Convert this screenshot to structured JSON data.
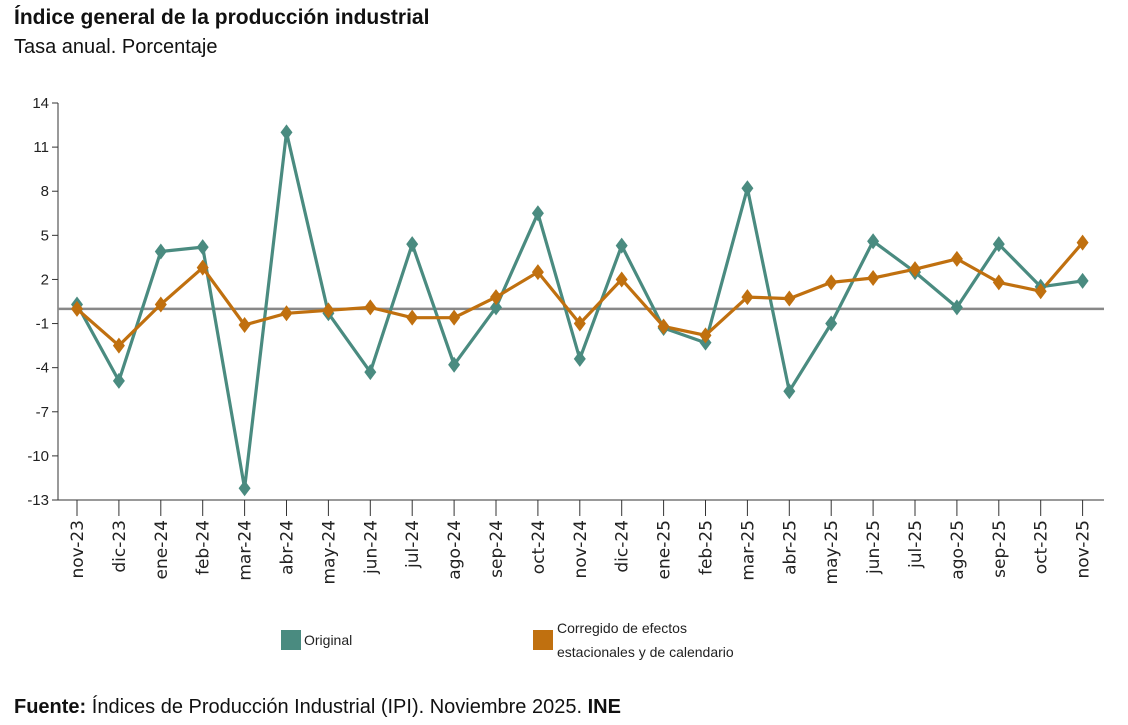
{
  "chart_data": {
    "type": "line",
    "title": "Índice general de la producción industrial",
    "subtitle": "Tasa anual. Porcentaje",
    "categories": [
      "nov-23",
      "dic-23",
      "ene-24",
      "feb-24",
      "mar-24",
      "abr-24",
      "may-24",
      "jun-24",
      "jul-24",
      "ago-24",
      "sep-24",
      "oct-24",
      "nov-24",
      "dic-24",
      "ene-25",
      "feb-25",
      "mar-25",
      "abr-25",
      "may-25",
      "jun-25",
      "jul-25",
      "ago-25",
      "sep-25",
      "oct-25",
      "nov-25"
    ],
    "series": [
      {
        "name": "Original",
        "color": "#4a8b80",
        "values": [
          0.3,
          -4.9,
          3.9,
          4.2,
          -12.2,
          12.0,
          -0.3,
          -4.3,
          4.4,
          -3.8,
          0.1,
          6.5,
          -3.4,
          4.3,
          -1.3,
          -2.3,
          8.2,
          -5.6,
          -1.0,
          4.6,
          2.5,
          0.1,
          4.4,
          1.5,
          1.9
        ]
      },
      {
        "name": "Corregido de efectos estacionales y de calendario",
        "legend_lines": [
          "Corregido de efectos",
          "estacionales y de calendario"
        ],
        "color": "#c0700f",
        "values": [
          0.0,
          -2.5,
          0.3,
          2.8,
          -1.1,
          -0.3,
          -0.1,
          0.1,
          -0.6,
          -0.6,
          0.8,
          2.5,
          -1.0,
          2.0,
          -1.2,
          -1.8,
          0.8,
          0.7,
          1.8,
          2.1,
          2.7,
          3.4,
          1.8,
          1.2,
          4.5
        ]
      }
    ],
    "y_ticks": [
      "14",
      "11",
      "8",
      "5",
      "2",
      "-1",
      "-4",
      "-7",
      "-10",
      "-13"
    ],
    "ylim": [
      -13,
      14
    ],
    "reference_line": 0,
    "legend_position": "bottom",
    "xlabel": "",
    "ylabel": ""
  },
  "source": {
    "label": "Fuente:",
    "text": " Índices de Producción Industrial (IPI). Noviembre 2025. ",
    "org": "INE"
  }
}
